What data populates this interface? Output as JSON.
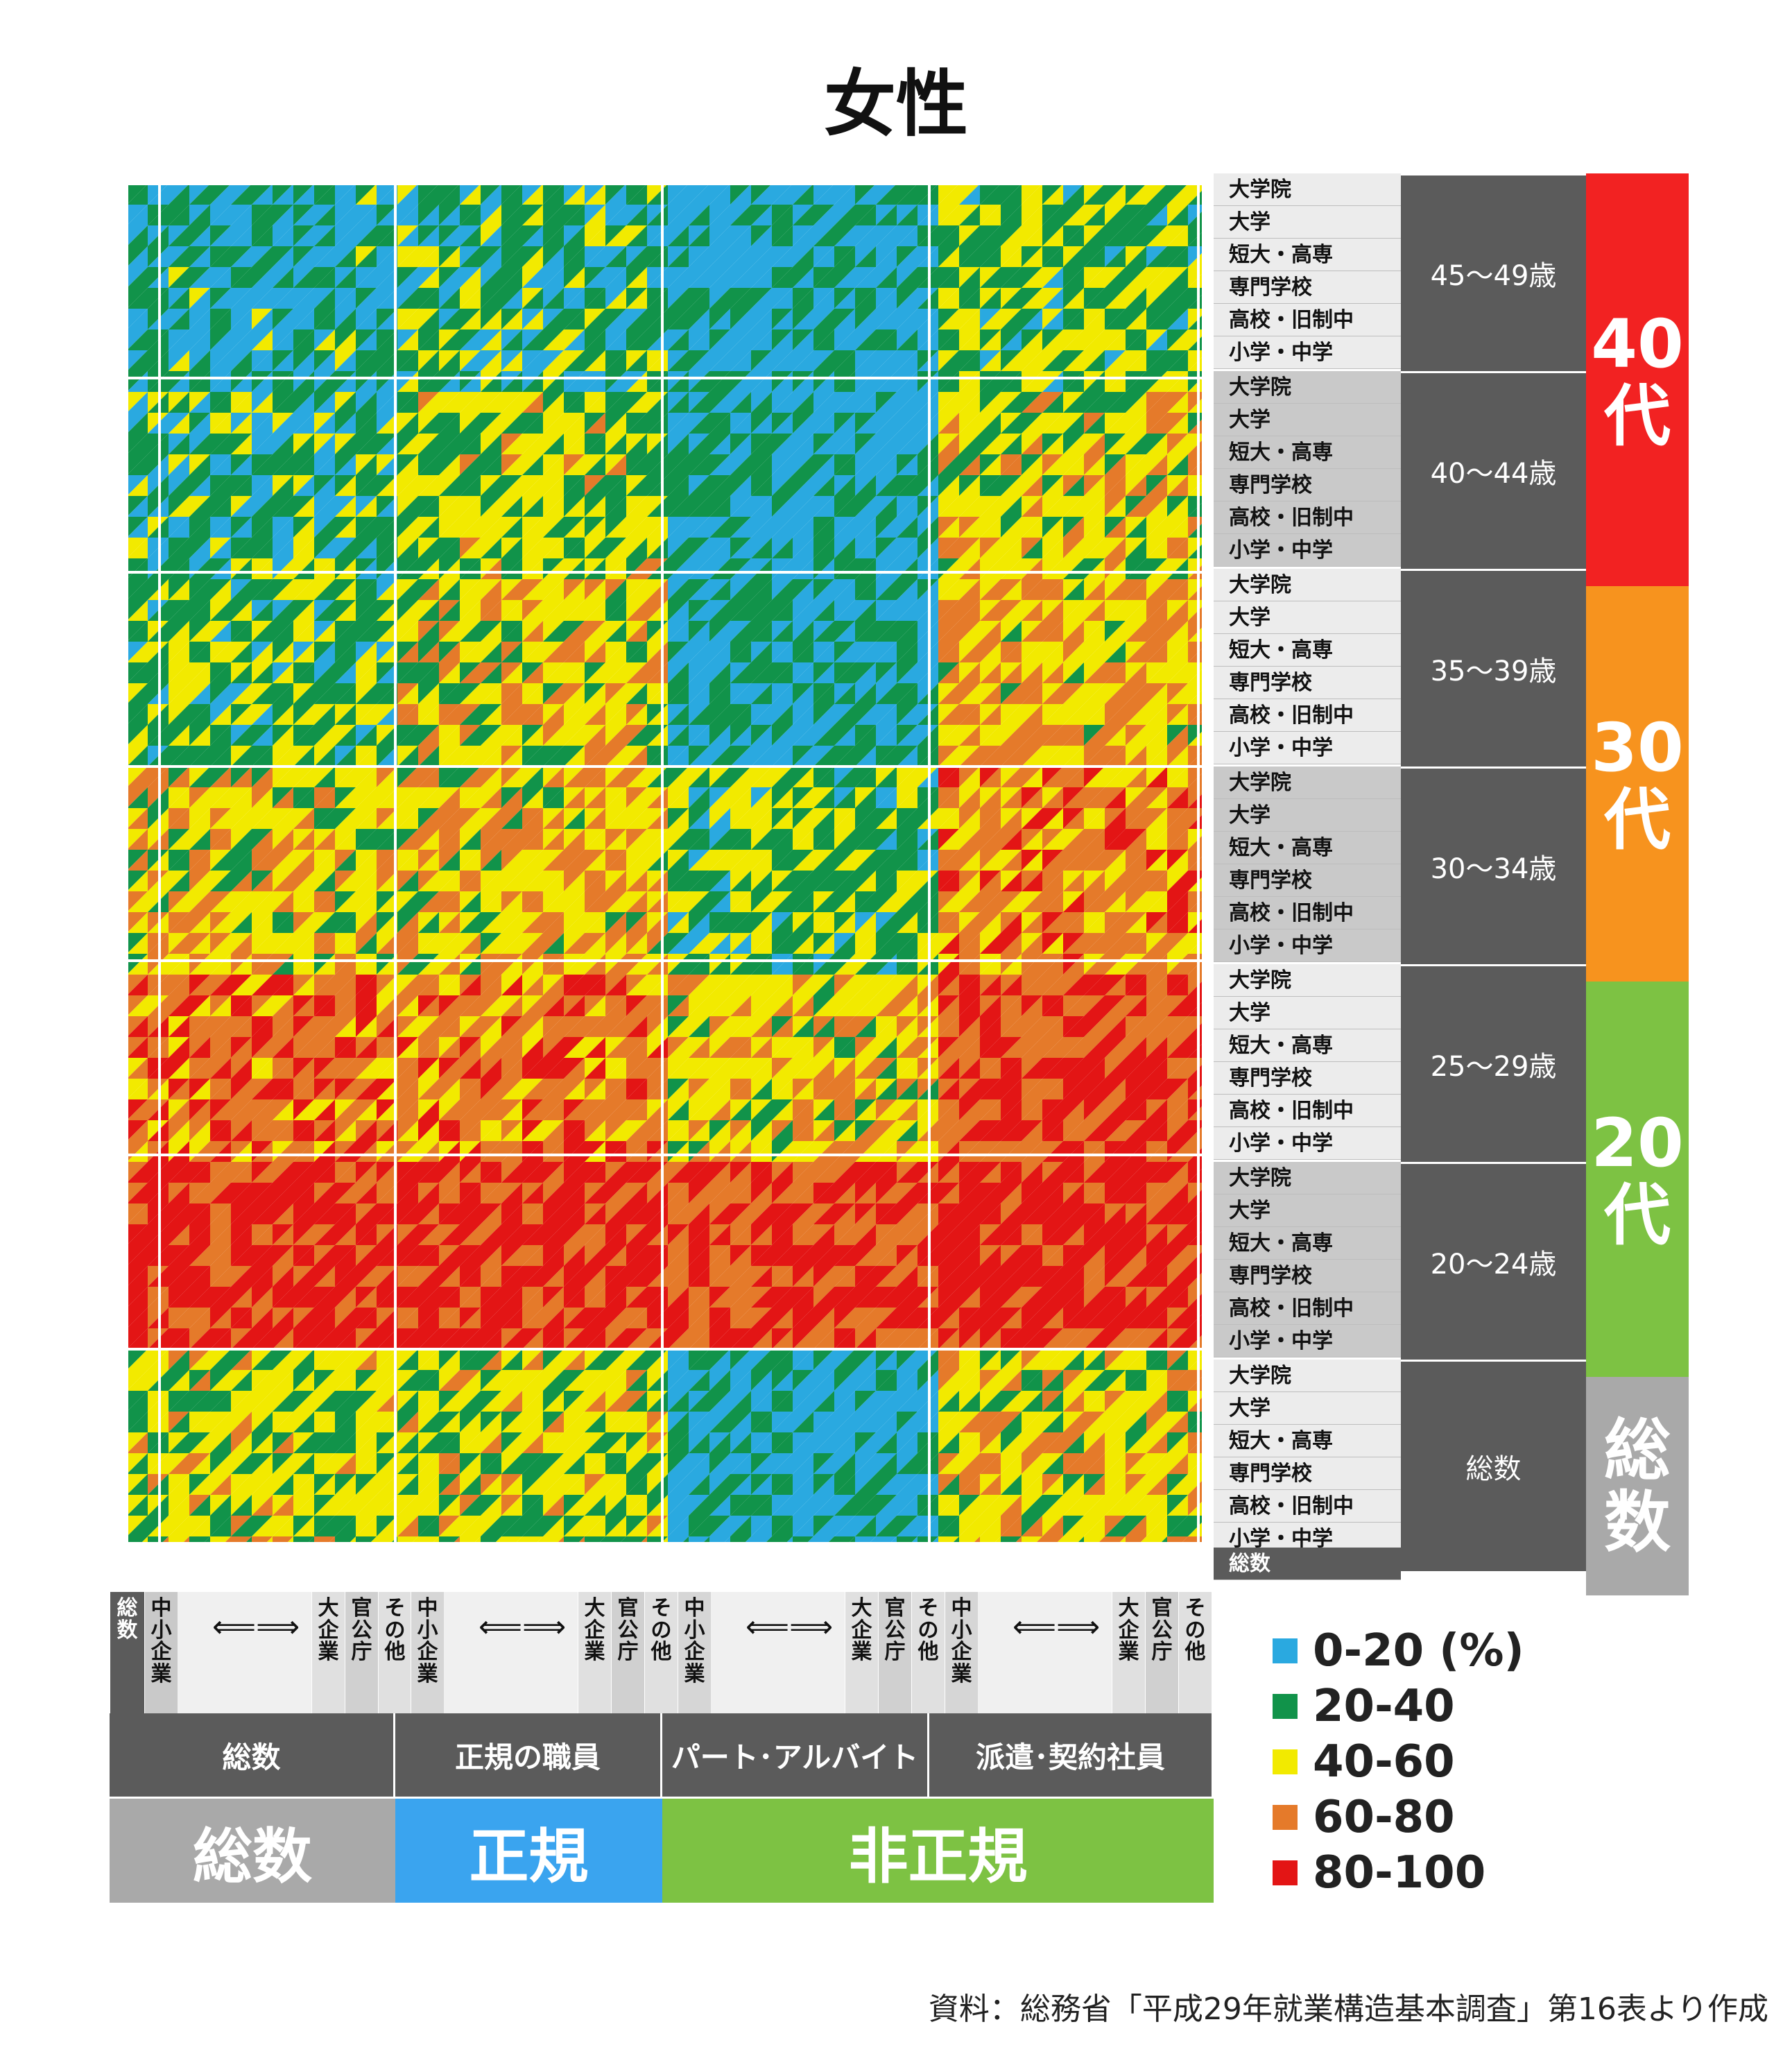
{
  "title": "女性",
  "chart_data": {
    "type": "heatmap",
    "title": "女性",
    "color_bins": [
      {
        "label": "0-20",
        "range": [
          0,
          20
        ],
        "color": "#2aa9e0"
      },
      {
        "label": "20-40",
        "range": [
          20,
          40
        ],
        "color": "#11934a"
      },
      {
        "label": "40-60",
        "range": [
          40,
          60
        ],
        "color": "#f2ea00"
      },
      {
        "label": "60-80",
        "range": [
          60,
          80
        ],
        "color": "#e57a2a"
      },
      {
        "label": "80-100",
        "range": [
          80,
          100
        ],
        "color": "#e31515"
      }
    ],
    "unit_label": "(%)",
    "column_groups": [
      "総数",
      "正規の職員",
      "パート･アルバイト",
      "派遣･契約社員"
    ],
    "row_groups": [
      "45〜49歳",
      "40〜44歳",
      "35〜39歳",
      "30〜34歳",
      "25〜29歳",
      "20〜24歳",
      "総数"
    ],
    "band_values": [
      [
        22,
        30,
        14,
        38
      ],
      [
        30,
        42,
        18,
        50
      ],
      [
        34,
        50,
        20,
        58
      ],
      [
        52,
        56,
        35,
        68
      ],
      [
        72,
        70,
        55,
        82
      ],
      [
        88,
        88,
        82,
        90
      ],
      [
        44,
        46,
        16,
        50
      ]
    ]
  },
  "row_labels": [
    "大学院",
    "大学",
    "短大・高専",
    "専門学校",
    "高校・旧制中",
    "小学・中学"
  ],
  "row_total_label": "総数",
  "age_groups": [
    "45〜49歳",
    "40〜44歳",
    "35〜39歳",
    "30〜34歳",
    "25〜29歳",
    "20〜24歳",
    "総数"
  ],
  "decades": [
    {
      "l1": "40",
      "l2": "代",
      "color": "#f22222"
    },
    {
      "l1": "30",
      "l2": "代",
      "color": "#f7931e"
    },
    {
      "l1": "20",
      "l2": "代",
      "color": "#7dc243"
    },
    {
      "l1": "総",
      "l2": "数",
      "color": "#a9a9a9"
    }
  ],
  "x_axis": {
    "total_label": "総数",
    "small_label": "中小企業",
    "arrow": "⟸⟹",
    "large_label": "大企業",
    "gov_label": "官公庁",
    "other_label": "その他"
  },
  "employment_types": [
    "総数",
    "正規の職員",
    "パート･アルバイト",
    "派遣･契約社員"
  ],
  "groups": [
    {
      "label": "総数",
      "color": "#a9a9a9"
    },
    {
      "label": "正規",
      "color": "#3aa4ef"
    },
    {
      "label": "非正規",
      "color": "#7dc243"
    }
  ],
  "legend": [
    {
      "label": "0-20",
      "color": "#2aa9e0"
    },
    {
      "label": "20-40",
      "color": "#11934a"
    },
    {
      "label": "40-60",
      "color": "#f2ea00"
    },
    {
      "label": "60-80",
      "color": "#e57a2a"
    },
    {
      "label": "80-100",
      "color": "#e31515"
    }
  ],
  "legend_unit": "(%)",
  "source": "資料：総務省「平成29年就業構造基本調査」第16表より作成"
}
